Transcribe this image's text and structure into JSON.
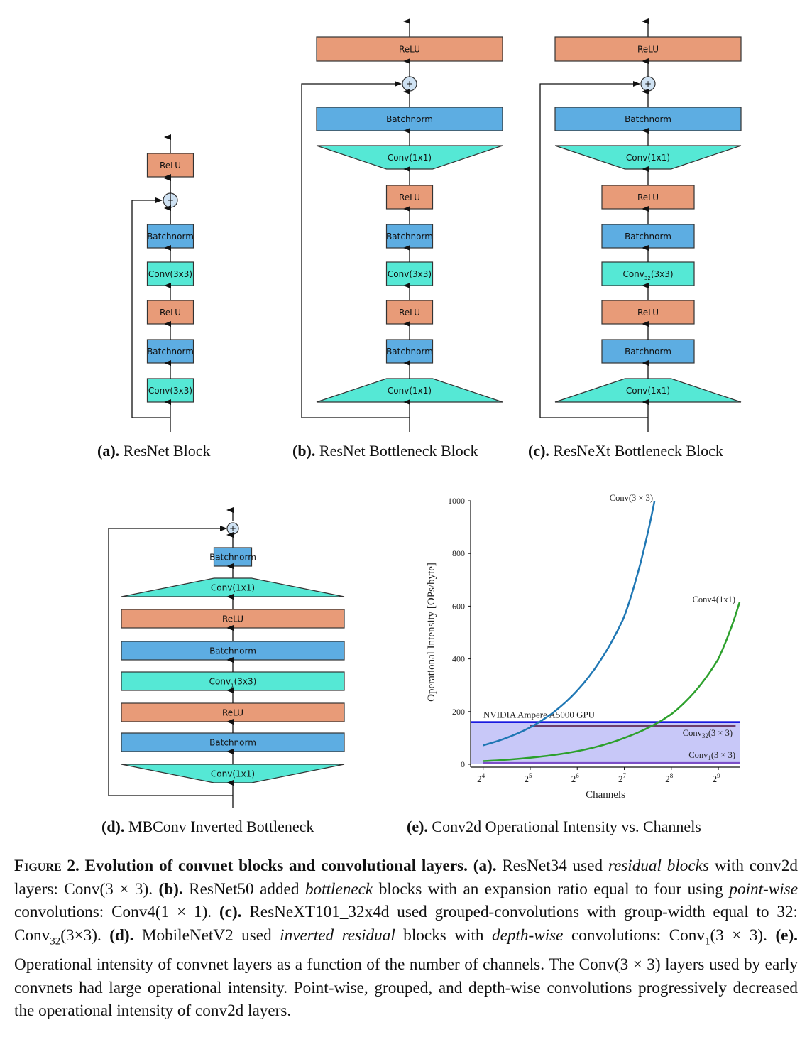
{
  "diagrams": {
    "a": {
      "caption_tag": "(a).",
      "caption_text": " ResNet Block",
      "layers": [
        "ReLU",
        "Batchnorm",
        "Conv(3x3)",
        "ReLU",
        "Batchnorm",
        "Conv(3x3)"
      ]
    },
    "b": {
      "caption_tag": "(b).",
      "caption_text": " ResNet Bottleneck Block",
      "layers": [
        "ReLU",
        "Batchnorm",
        "Conv(1x1)",
        "ReLU",
        "Batchnorm",
        "Conv(3x3)",
        "ReLU",
        "Batchnorm",
        "Conv(1x1)"
      ]
    },
    "c": {
      "caption_tag": "(c).",
      "caption_text": " ResNeXt Bottleneck Block",
      "layers": [
        "ReLU",
        "Batchnorm",
        "Conv(1x1)",
        "ReLU",
        "Batchnorm",
        "Conv",
        "ReLU",
        "Batchnorm",
        "Conv(1x1)"
      ],
      "grouped_conv": {
        "base": "Conv",
        "sub": "32",
        "suffix": "(3x3)"
      }
    },
    "d": {
      "caption_tag": "(d).",
      "caption_text": " MBConv Inverted Bottleneck",
      "layers": [
        "Batchnorm",
        "Conv(1x1)",
        "ReLU",
        "Batchnorm",
        "Conv",
        "ReLU",
        "Batchnorm",
        "Conv(1x1)"
      ],
      "depthwise_conv": {
        "base": "Conv",
        "sub": "1",
        "suffix": "(3x3)"
      }
    },
    "plus_symbol": "+",
    "colors": {
      "relu": "#e89b78",
      "batchnorm": "#5dade2",
      "conv": "#55e8d5",
      "plus": "#cfe2f3"
    }
  },
  "chart_data": {
    "type": "line",
    "caption_tag": "(e).",
    "caption_text": " Conv2d Operational Intensity vs. Channels",
    "xlabel": "Channels",
    "ylabel": "Operational Intensity [OPs/byte]",
    "x_scale": "log2",
    "x_ticks": [
      {
        "base": "2",
        "exp": "4",
        "value": 16
      },
      {
        "base": "2",
        "exp": "5",
        "value": 32
      },
      {
        "base": "2",
        "exp": "6",
        "value": 64
      },
      {
        "base": "2",
        "exp": "7",
        "value": 128
      },
      {
        "base": "2",
        "exp": "8",
        "value": 256
      },
      {
        "base": "2",
        "exp": "9",
        "value": 512
      }
    ],
    "y_ticks": [
      "0",
      "200",
      "400",
      "600",
      "800",
      "1000"
    ],
    "xlim": [
      13.3,
      700
    ],
    "ylim": [
      0,
      1000
    ],
    "gpu": {
      "label": "NVIDIA Ampere A5000 GPU",
      "value": 160,
      "color": "#0000dd",
      "band_color": "#c8c8f8"
    },
    "series": [
      {
        "name": "Conv(3 × 3)",
        "color": "#1f77b4",
        "x": [
          16,
          32,
          64,
          128,
          200
        ],
        "y": [
          72,
          140,
          280,
          560,
          1000
        ]
      },
      {
        "name": "Conv4(1x1)",
        "color": "#2ca02c",
        "x": [
          16,
          32,
          64,
          128,
          256,
          512,
          700
        ],
        "y": [
          12,
          25,
          50,
          100,
          190,
          400,
          615
        ]
      },
      {
        "name": "Conv32(3 × 3)",
        "label_base": "Conv",
        "label_sub": "32",
        "label_suffix": "(3 × 3)",
        "color": "#6a3d6a",
        "x": [
          32,
          660
        ],
        "y": [
          145,
          145
        ]
      },
      {
        "name": "Conv1(3 × 3)",
        "label_base": "Conv",
        "label_sub": "1",
        "label_suffix": "(3 × 3)",
        "color": "#7b4fc8",
        "x": [
          16,
          700
        ],
        "y": [
          5,
          5
        ]
      }
    ]
  },
  "caption": {
    "figure_label": "Figure 2.",
    "title": " Evolution of convnet blocks and convolutional layers.",
    "segments": [
      {
        "style": "b",
        "text": " (a)."
      },
      {
        "style": "n",
        "text": " ResNet34 used "
      },
      {
        "style": "i",
        "text": "residual blocks"
      },
      {
        "style": "n",
        "text": " with conv2d layers: Conv(3 × 3). "
      },
      {
        "style": "b",
        "text": "(b)."
      },
      {
        "style": "n",
        "text": " ResNet50 added "
      },
      {
        "style": "i",
        "text": "bottleneck"
      },
      {
        "style": "n",
        "text": " blocks with an expansion ratio equal to four using "
      },
      {
        "style": "i",
        "text": "point-wise"
      },
      {
        "style": "n",
        "text": " convolutions: Conv4(1 × 1). "
      },
      {
        "style": "b",
        "text": "(c)."
      },
      {
        "style": "n",
        "text": " ResNeXT101_32x4d used grouped-convolutions with group-width equal to 32: Conv"
      },
      {
        "style": "sub",
        "text": "32"
      },
      {
        "style": "n",
        "text": "(3×3). "
      },
      {
        "style": "b",
        "text": "(d)."
      },
      {
        "style": "n",
        "text": " MobileNetV2 used "
      },
      {
        "style": "i",
        "text": "inverted residual"
      },
      {
        "style": "n",
        "text": " blocks with "
      },
      {
        "style": "i",
        "text": "depth-wise"
      },
      {
        "style": "n",
        "text": " convolutions: Conv"
      },
      {
        "style": "sub",
        "text": "1"
      },
      {
        "style": "n",
        "text": "(3 × 3). "
      },
      {
        "style": "b",
        "text": "(e)."
      },
      {
        "style": "n",
        "text": " Operational intensity of convnet layers as a function of the number of channels. The Conv(3 × 3) layers used by early convnets had large operational intensity. Point-wise, grouped, and depth-wise convolutions progressively decreased the operational intensity of conv2d layers."
      }
    ]
  }
}
